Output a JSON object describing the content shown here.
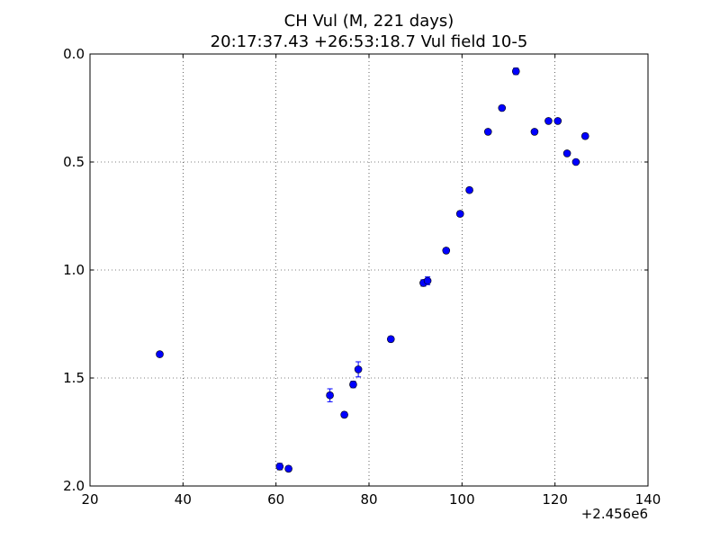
{
  "chart_data": {
    "type": "scatter",
    "title": "CH Vul (M, 221 days)",
    "subtitle": "20:17:37.43 +26:53:18.7 Vul field 10-5",
    "xlabel": "",
    "ylabel": "",
    "x_offset_label": "+2.456e6",
    "xlim": [
      20,
      140
    ],
    "ylim": [
      2.0,
      0.0
    ],
    "y_inverted": true,
    "grid": true,
    "x_ticks": [
      20,
      40,
      60,
      80,
      100,
      120,
      140
    ],
    "x_tick_labels": [
      "20",
      "40",
      "60",
      "80",
      "100",
      "120",
      "140"
    ],
    "y_ticks": [
      0.0,
      0.5,
      1.0,
      1.5,
      2.0
    ],
    "y_tick_labels": [
      "0.0",
      "0.5",
      "1.0",
      "1.5",
      "2.0"
    ],
    "marker_color": "#0000ff",
    "series": [
      {
        "name": "",
        "x": [
          35.0,
          60.8,
          62.7,
          71.6,
          74.7,
          76.6,
          77.7,
          84.7,
          91.7,
          92.6,
          96.6,
          99.6,
          101.6,
          105.6,
          108.6,
          111.6,
          115.6,
          118.6,
          120.6,
          122.6,
          124.5,
          126.5
        ],
        "y": [
          1.39,
          1.91,
          1.92,
          1.58,
          1.67,
          1.53,
          1.46,
          1.32,
          1.06,
          1.05,
          0.91,
          0.74,
          0.63,
          0.36,
          0.25,
          0.08,
          0.36,
          0.31,
          0.31,
          0.46,
          0.5,
          0.38
        ],
        "yerr": [
          0.01,
          0.015,
          0.012,
          0.03,
          0.012,
          0.015,
          0.035,
          0.012,
          0.015,
          0.018,
          0.012,
          0.012,
          0.01,
          0.01,
          0.01,
          0.015,
          0.01,
          0.01,
          0.01,
          0.01,
          0.01,
          0.012
        ]
      }
    ]
  }
}
